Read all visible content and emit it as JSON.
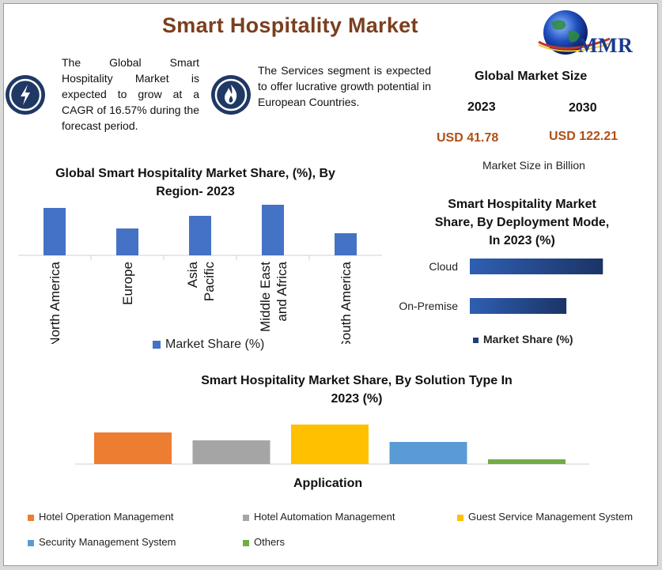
{
  "header": {
    "title": "Smart Hospitality Market",
    "logo_text": "MMR"
  },
  "info": {
    "cagr_text": "The Global Smart Hospitality Market is expected to grow at a CAGR of 16.57% during the forecast period.",
    "services_text": "The Services segment is expected to offer lucrative growth potential in European Countries."
  },
  "market_size": {
    "title": "Global Market Size",
    "year_a": "2023",
    "year_b": "2030",
    "value_a": "USD 41.78",
    "value_b": "USD 122.21",
    "note": "Market Size in Billion"
  },
  "colors": {
    "title": "#7b3f1f",
    "icon_bg": "#1f3864",
    "region_bar": "#4472c4",
    "value_text": "#b04f14"
  },
  "icons": {
    "cagr": "lightning-icon",
    "services": "flame-icon",
    "logo": "globe-icon"
  },
  "chart_data": [
    {
      "type": "bar",
      "title": "Global Smart Hospitality Market Share, (%), By Region- 2023",
      "categories": [
        "North America",
        "Europe",
        "Asia Pacific",
        "Middle East and Africa",
        "South America"
      ],
      "series": [
        {
          "name": "Market Share (%)",
          "values": [
            30,
            17,
            25,
            32,
            14
          ]
        }
      ],
      "ylim": [
        0,
        33
      ],
      "grid": false,
      "legend": "bottom"
    },
    {
      "type": "bar",
      "orientation": "horizontal",
      "title": "Smart Hospitality Market Share, By Deployment Mode, In 2023 (%)",
      "categories": [
        "Cloud",
        "On-Premise"
      ],
      "series": [
        {
          "name": "Market Share (%)",
          "values": [
            62,
            45
          ]
        }
      ],
      "xlim": [
        0,
        70
      ],
      "grid": false,
      "legend": "bottom"
    },
    {
      "type": "bar",
      "title": "Smart Hospitality Market  Share, By Solution Type In 2023 (%)",
      "xlabel": "Application",
      "categories": [
        ""
      ],
      "series": [
        {
          "name": "Hotel Operation Management",
          "values": [
            20
          ],
          "color": "#ed7d31"
        },
        {
          "name": "Hotel Automation Management",
          "values": [
            15
          ],
          "color": "#a5a5a5"
        },
        {
          "name": "Guest Service Management System",
          "values": [
            25
          ],
          "color": "#ffc000"
        },
        {
          "name": "Security Management System",
          "values": [
            14
          ],
          "color": "#5b9bd5"
        },
        {
          "name": "Others",
          "values": [
            3
          ],
          "color": "#70ad47"
        }
      ],
      "ylim": [
        0,
        26
      ],
      "grid": false,
      "legend": "bottom"
    }
  ]
}
